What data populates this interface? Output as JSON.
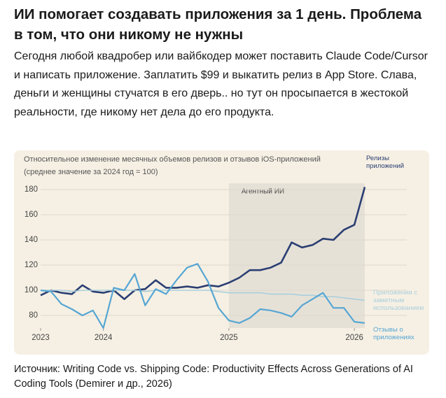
{
  "header": {
    "title": "ИИ помогает создавать приложения за 1 день. Проблема в том, что они никому не нужны"
  },
  "body": "Сегодня любой квадробер или вайбкодер может поставить Claude Code/Cursor и написать приложение. Заплатить $99 и выкатить релиз в App Store. Слава, деньги и женщины стучатся в его дверь.. но тут он просыпается в жестокой реальности, где никому нет дела до его продукта.",
  "source": "Источник: Writing Code vs. Shipping Code: Productivity Effects Across Generations of AI Coding Tools (Demirer и др., 2026)",
  "chart_data": {
    "type": "line",
    "title": "Относительное изменение месячных объемов релизов и отзывов iOS-приложений",
    "subtitle": "(среднее значение за 2024 год = 100)",
    "x": [
      2023.5,
      2023.583,
      2023.667,
      2023.75,
      2023.833,
      2023.917,
      2024,
      2024.083,
      2024.167,
      2024.25,
      2024.333,
      2024.417,
      2024.5,
      2024.583,
      2024.667,
      2024.75,
      2024.833,
      2024.917,
      2025,
      2025.083,
      2025.167,
      2025.25,
      2025.333,
      2025.417,
      2025.5,
      2025.583,
      2025.667,
      2025.75,
      2025.833,
      2025.917,
      2026,
      2026.083
    ],
    "series": [
      {
        "name": "Релизы приложений",
        "color": "#2b3f73",
        "width": 2.6,
        "values": [
          96,
          100,
          98,
          97,
          104,
          99,
          98,
          100,
          93,
          100,
          101,
          108,
          102,
          102,
          103,
          102,
          104,
          103,
          106,
          110,
          116,
          116,
          118,
          122,
          138,
          134,
          136,
          141,
          140,
          148,
          152,
          182
        ]
      },
      {
        "name": "Приложения с заметным использованием",
        "color": "#a9cfdc",
        "width": 1.6,
        "values": [
          100,
          100,
          100,
          99,
          100,
          100,
          100,
          100,
          100,
          100,
          99,
          100,
          100,
          100,
          100,
          100,
          100,
          99,
          98,
          98,
          98,
          98,
          97,
          97,
          97,
          96,
          96,
          95,
          95,
          94,
          93,
          92
        ]
      },
      {
        "name": "Отзывы о приложениях",
        "color": "#56a6d3",
        "width": 2.2,
        "values": [
          100,
          99,
          89,
          85,
          80,
          84,
          70,
          102,
          100,
          113,
          88,
          101,
          97,
          108,
          118,
          121,
          107,
          86,
          76,
          74,
          78,
          85,
          84,
          82,
          79,
          88,
          93,
          98,
          86,
          86,
          75,
          74
        ]
      }
    ],
    "shade": {
      "label": "Агентный ИИ",
      "start": 2025,
      "end": 2026.083
    },
    "xlim": [
      2023.5,
      2026.083
    ],
    "xticks": [
      {
        "value": 2023.5,
        "label": "2023"
      },
      2024,
      2025,
      2026
    ],
    "ylim": [
      70,
      185
    ],
    "yticks": [
      80,
      100,
      120,
      140,
      160,
      180
    ],
    "grid": true
  }
}
